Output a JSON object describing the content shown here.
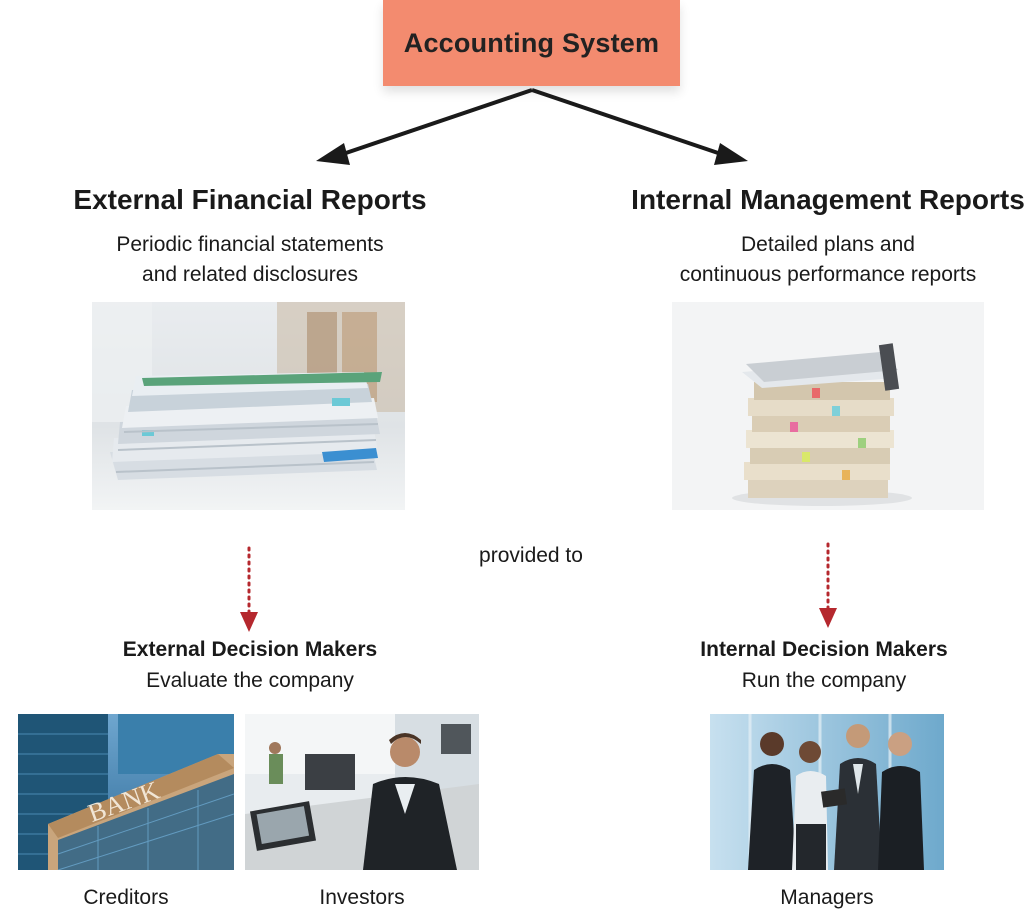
{
  "top": {
    "title": "Accounting System"
  },
  "external": {
    "heading": "External Financial Reports",
    "line1": "Periodic financial statements",
    "line2": "and related disclosures",
    "decision_title": "External Decision Makers",
    "decision_sub": "Evaluate the company",
    "captions": [
      "Creditors",
      "Investors"
    ],
    "bank_sign": "BANK"
  },
  "internal": {
    "heading": "Internal Management Reports",
    "line1": "Detailed plans and",
    "line2": "continuous performance reports",
    "decision_title": "Internal Decision Makers",
    "decision_sub": "Run the company",
    "captions": [
      "Managers"
    ]
  },
  "connector": {
    "label": "provided to"
  },
  "colors": {
    "top_box": "#f38b6f",
    "arrow": "#1a1a1a",
    "dotted_arrow": "#b5282e"
  }
}
